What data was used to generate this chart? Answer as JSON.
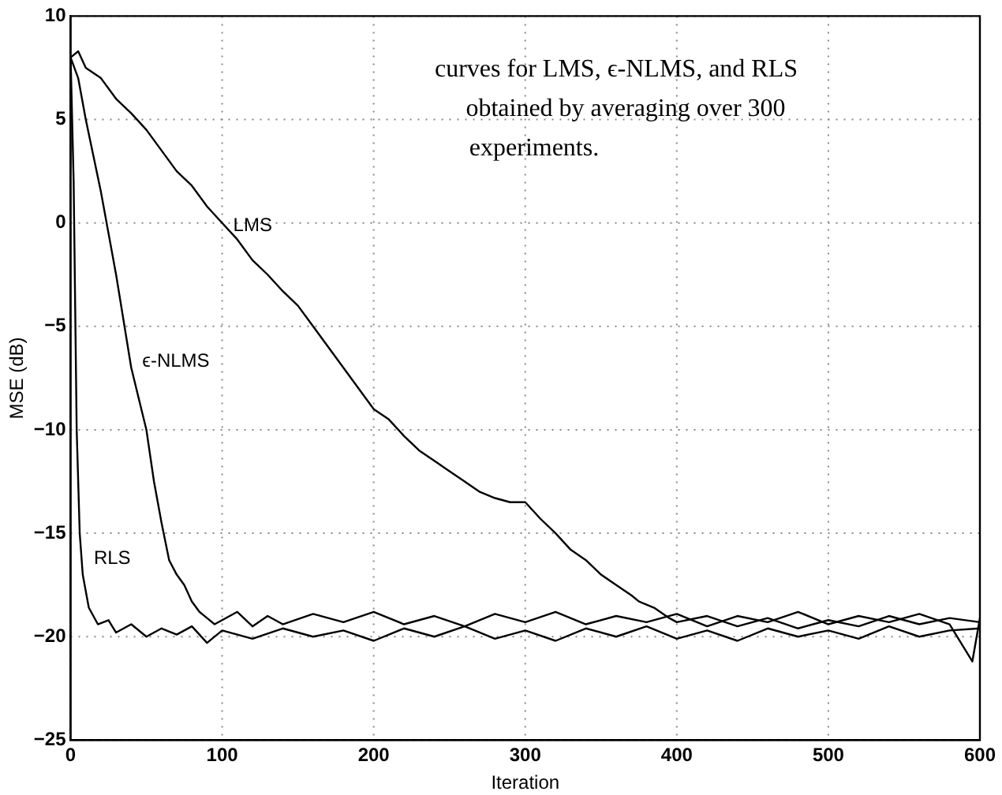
{
  "chart_data": {
    "type": "line",
    "xlabel": "Iteration",
    "ylabel": "MSE (dB)",
    "xlim": [
      0,
      600
    ],
    "xticks": [
      0,
      100,
      200,
      300,
      400,
      500,
      600
    ],
    "ylim": [
      -25,
      10
    ],
    "yticks": [
      -25,
      -20,
      -15,
      -10,
      -5,
      0,
      5,
      10
    ],
    "grid": true,
    "legend": false,
    "marker": "none",
    "line_style": "solid",
    "annotations": [
      "curves for LMS, ϵ-NLMS, and RLS",
      "obtained by averaging over 300",
      "experiments."
    ],
    "series": [
      {
        "name": "LMS",
        "color": "#000000",
        "x": [
          0,
          5,
          10,
          20,
          30,
          40,
          50,
          60,
          70,
          80,
          90,
          100,
          110,
          120,
          130,
          140,
          150,
          160,
          170,
          180,
          190,
          200,
          210,
          220,
          230,
          240,
          250,
          260,
          270,
          280,
          290,
          300,
          310,
          320,
          330,
          340,
          350,
          360,
          370,
          375,
          385,
          395,
          400,
          420,
          440,
          460,
          480,
          500,
          520,
          540,
          560,
          580,
          600
        ],
        "values": [
          8,
          8.3,
          7.5,
          7,
          6,
          5.3,
          4.5,
          3.5,
          2.5,
          1.8,
          0.8,
          0,
          -0.8,
          -1.8,
          -2.5,
          -3.3,
          -4,
          -5,
          -6,
          -7,
          -8,
          -9,
          -9.5,
          -10.3,
          -11,
          -11.5,
          -12,
          -12.5,
          -13,
          -13.3,
          -13.5,
          -13.5,
          -14.3,
          -15,
          -15.8,
          -16.3,
          -17,
          -17.5,
          -18,
          -18.3,
          -18.6,
          -19.1,
          -19.3,
          -19.0,
          -19.5,
          -19.1,
          -19.6,
          -19.2,
          -19.5,
          -19.0,
          -19.4,
          -19.1,
          -19.3
        ]
      },
      {
        "name": "ϵ-NLMS",
        "color": "#000000",
        "x": [
          0,
          5,
          10,
          20,
          30,
          40,
          50,
          55,
          60,
          65,
          70,
          75,
          80,
          85,
          90,
          95,
          100,
          110,
          120,
          130,
          140,
          160,
          180,
          200,
          220,
          240,
          260,
          280,
          300,
          320,
          340,
          360,
          380,
          400,
          420,
          440,
          460,
          480,
          500,
          520,
          540,
          560,
          580,
          595,
          600
        ],
        "values": [
          8,
          7,
          5,
          1.5,
          -2.5,
          -7,
          -10,
          -12.5,
          -14.5,
          -16.3,
          -17,
          -17.5,
          -18.3,
          -18.8,
          -19.1,
          -19.4,
          -19.2,
          -18.8,
          -19.5,
          -19.0,
          -19.4,
          -18.9,
          -19.3,
          -18.8,
          -19.4,
          -19.0,
          -19.5,
          -18.9,
          -19.3,
          -18.8,
          -19.4,
          -19.0,
          -19.3,
          -18.9,
          -19.5,
          -19.0,
          -19.3,
          -18.8,
          -19.4,
          -19.0,
          -19.3,
          -18.9,
          -19.4,
          -21.2,
          -19.1
        ]
      },
      {
        "name": "RLS",
        "color": "#000000",
        "x": [
          0,
          2,
          4,
          6,
          8,
          12,
          18,
          25,
          30,
          40,
          50,
          60,
          70,
          80,
          90,
          100,
          120,
          140,
          160,
          180,
          200,
          220,
          240,
          260,
          280,
          300,
          320,
          340,
          360,
          380,
          400,
          420,
          440,
          460,
          480,
          500,
          520,
          540,
          560,
          580,
          600
        ],
        "values": [
          8,
          2,
          -10,
          -15,
          -17,
          -18.6,
          -19.4,
          -19.2,
          -19.8,
          -19.4,
          -20.0,
          -19.6,
          -19.9,
          -19.5,
          -20.3,
          -19.7,
          -20.1,
          -19.6,
          -20.0,
          -19.7,
          -20.2,
          -19.6,
          -20.0,
          -19.5,
          -20.1,
          -19.7,
          -20.2,
          -19.6,
          -20.0,
          -19.5,
          -20.1,
          -19.7,
          -20.2,
          -19.6,
          -20.0,
          -19.7,
          -20.1,
          -19.5,
          -20.0,
          -19.7,
          -19.6
        ]
      }
    ]
  }
}
